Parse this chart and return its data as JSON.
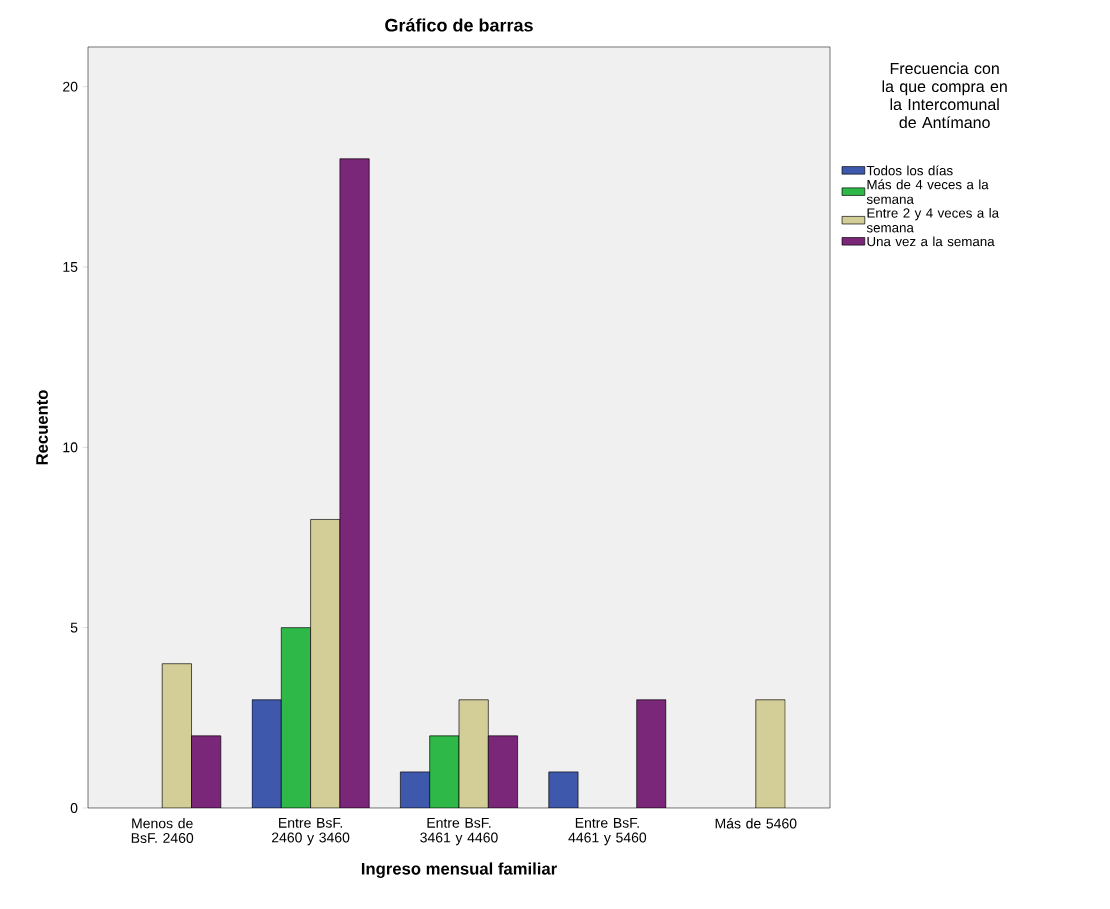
{
  "chart_data": {
    "type": "bar",
    "title": "Gráfico de barras",
    "xlabel": "Ingreso mensual familiar",
    "ylabel": "Recuento",
    "legend_title": "Frecuencia con la que compra en la Intercomunal de Antímano",
    "categories": [
      "Menos de BsF. 2460",
      "Entre BsF. 2460 y 3460",
      "Entre BsF. 3461 y 4460",
      "Entre BsF. 4461 y 5460",
      "Más de 5460"
    ],
    "series": [
      {
        "name": "Todos los días",
        "color": "#3e58ac",
        "values": [
          null,
          3,
          1,
          1,
          null
        ]
      },
      {
        "name": "Más de 4 veces a la semana",
        "color": "#2eb848",
        "values": [
          null,
          5,
          2,
          null,
          null
        ]
      },
      {
        "name": "Entre 2 y 4 veces a la semana",
        "color": "#d3ce97",
        "values": [
          4,
          8,
          3,
          null,
          3
        ]
      },
      {
        "name": "Una vez a la semana",
        "color": "#7b2779",
        "values": [
          2,
          18,
          2,
          3,
          null
        ]
      }
    ],
    "ylim": [
      0,
      21.1
    ],
    "yticks": [
      0,
      5,
      10,
      15,
      20
    ],
    "legend": "right"
  }
}
